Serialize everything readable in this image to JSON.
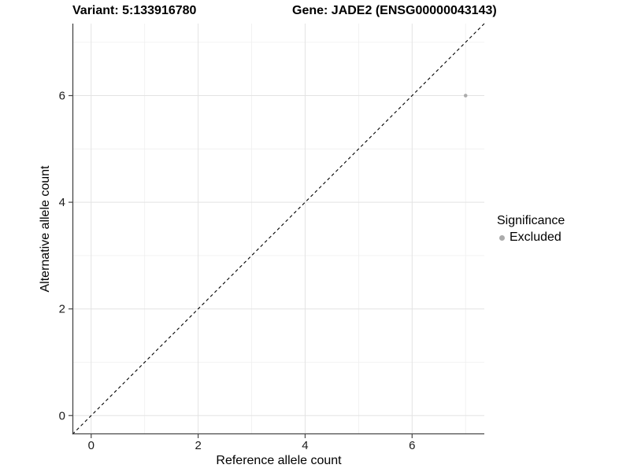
{
  "chart_data": {
    "type": "scatter",
    "title_left": "Variant: 5:133916780",
    "title_right": "Gene: JADE2 (ENSG00000043143)",
    "xlabel": "Reference allele count",
    "ylabel": "Alternative allele count",
    "xlim": [
      -0.35,
      7.35
    ],
    "ylim": [
      -0.35,
      7.35
    ],
    "x_ticks": [
      0,
      2,
      4,
      6
    ],
    "y_ticks": [
      0,
      2,
      4,
      6
    ],
    "x_minor_ticks": [
      1,
      3,
      5,
      7
    ],
    "y_minor_ticks": [
      1,
      3,
      5,
      7
    ],
    "grid": true,
    "legend_position": "right",
    "identity_line": {
      "style": "dashed",
      "from_x": -0.35,
      "from_y": -0.35,
      "to_x": 7.35,
      "to_y": 7.35,
      "color": "#000000"
    },
    "points": [
      {
        "x": 7,
        "y": 6,
        "series": "Excluded",
        "color": "#ababab",
        "radius": 2.3
      }
    ],
    "legend": {
      "title": "Significance",
      "items": [
        {
          "label": "Excluded",
          "color": "#ababab"
        }
      ]
    },
    "colors": {
      "background": "#ffffff",
      "grid_major": "#e3e3e3",
      "grid_minor": "#efefef",
      "axis_line": "#474747",
      "tick_mark": "#474747",
      "tick_text": "#1a1a1a"
    }
  }
}
